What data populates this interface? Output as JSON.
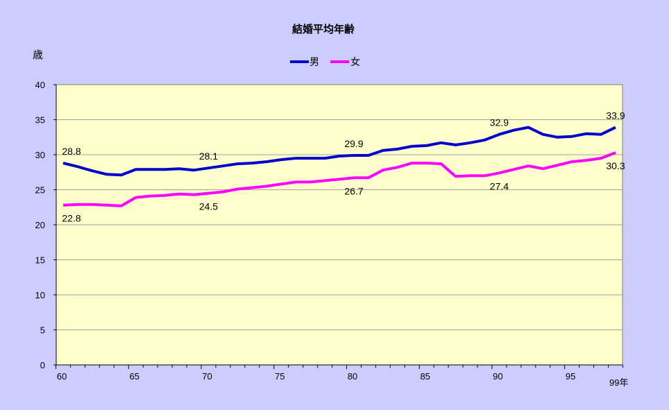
{
  "chart_data": {
    "type": "line",
    "title": "結婚平均年齢",
    "ylabel": "歳",
    "x_end_label": "99年",
    "ylim": [
      0,
      40
    ],
    "yticks": [
      0,
      5,
      10,
      15,
      20,
      25,
      30,
      35,
      40
    ],
    "xlim": [
      1960,
      1999
    ],
    "xticks": [
      1960,
      1965,
      1970,
      1975,
      1980,
      1985,
      1990,
      1995
    ],
    "xtick_labels": [
      "60",
      "65",
      "70",
      "75",
      "80",
      "85",
      "90",
      "95"
    ],
    "legend_position": "top-center",
    "grid": true,
    "x": [
      1960,
      1961,
      1962,
      1963,
      1964,
      1965,
      1966,
      1967,
      1968,
      1969,
      1970,
      1971,
      1972,
      1973,
      1974,
      1975,
      1976,
      1977,
      1978,
      1979,
      1980,
      1981,
      1982,
      1983,
      1984,
      1985,
      1986,
      1987,
      1988,
      1989,
      1990,
      1991,
      1992,
      1993,
      1994,
      1995,
      1996,
      1997,
      1998
    ],
    "series": [
      {
        "name": "男",
        "color": "#0000cc",
        "values": [
          28.8,
          28.3,
          27.7,
          27.2,
          27.1,
          27.9,
          27.9,
          27.9,
          28.0,
          27.8,
          28.1,
          28.4,
          28.7,
          28.8,
          29.0,
          29.3,
          29.5,
          29.5,
          29.5,
          29.8,
          29.9,
          29.9,
          30.6,
          30.8,
          31.2,
          31.3,
          31.7,
          31.4,
          31.7,
          32.1,
          32.9,
          33.5,
          33.9,
          32.9,
          32.5,
          32.6,
          33.0,
          32.9,
          33.9
        ],
        "labels": [
          {
            "index": 0,
            "text": "28.8",
            "pos": "above"
          },
          {
            "index": 10,
            "text": "28.1",
            "pos": "above"
          },
          {
            "index": 20,
            "text": "29.9",
            "pos": "above"
          },
          {
            "index": 30,
            "text": "32.9",
            "pos": "above"
          },
          {
            "index": 38,
            "text": "33.9",
            "pos": "above"
          }
        ]
      },
      {
        "name": "女",
        "color": "#ff00ff",
        "values": [
          22.8,
          22.9,
          22.9,
          22.8,
          22.7,
          23.9,
          24.1,
          24.2,
          24.4,
          24.3,
          24.5,
          24.7,
          25.1,
          25.3,
          25.5,
          25.8,
          26.1,
          26.1,
          26.3,
          26.5,
          26.7,
          26.7,
          27.8,
          28.2,
          28.8,
          28.8,
          28.7,
          26.9,
          27.0,
          27.0,
          27.4,
          27.9,
          28.4,
          28.0,
          28.5,
          29.0,
          29.2,
          29.5,
          30.3
        ],
        "labels": [
          {
            "index": 0,
            "text": "22.8",
            "pos": "below"
          },
          {
            "index": 10,
            "text": "24.5",
            "pos": "below"
          },
          {
            "index": 20,
            "text": "26.7",
            "pos": "below"
          },
          {
            "index": 30,
            "text": "27.4",
            "pos": "below"
          },
          {
            "index": 38,
            "text": "30.3",
            "pos": "below"
          }
        ]
      }
    ]
  }
}
